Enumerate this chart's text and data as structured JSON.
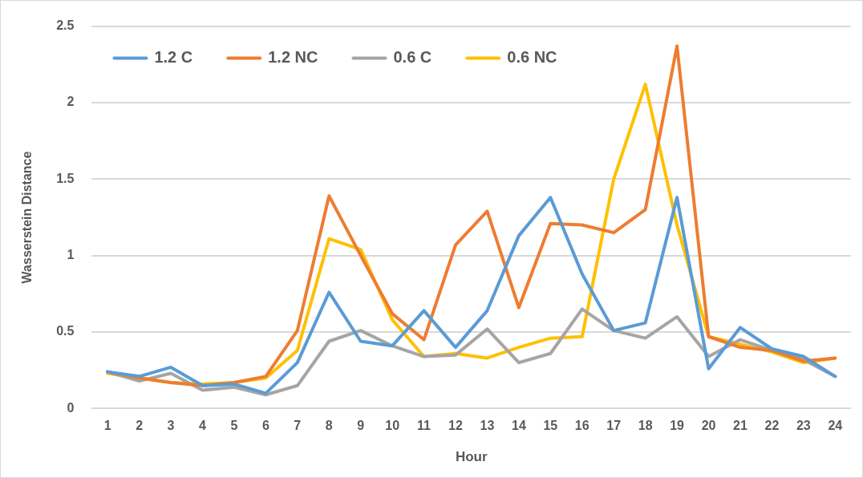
{
  "chart_data": {
    "type": "line",
    "xlabel": "Hour",
    "ylabel": "Wasserstein Distance",
    "categories": [
      "1",
      "2",
      "3",
      "4",
      "5",
      "6",
      "7",
      "8",
      "9",
      "10",
      "11",
      "12",
      "13",
      "14",
      "15",
      "16",
      "17",
      "18",
      "19",
      "20",
      "21",
      "22",
      "23",
      "24"
    ],
    "series": [
      {
        "name": "1.2 C",
        "color": "#5b9bd5",
        "values": [
          0.24,
          0.21,
          0.27,
          0.15,
          0.16,
          0.1,
          0.3,
          0.76,
          0.44,
          0.41,
          0.64,
          0.4,
          0.64,
          1.13,
          1.38,
          0.88,
          0.51,
          0.56,
          1.38,
          0.26,
          0.53,
          0.39,
          0.34,
          0.21
        ]
      },
      {
        "name": "1.2 NC",
        "color": "#ed7d31",
        "values": [
          0.24,
          0.2,
          0.17,
          0.15,
          0.17,
          0.21,
          0.51,
          1.39,
          1.0,
          0.62,
          0.45,
          1.07,
          1.29,
          0.66,
          1.21,
          1.2,
          1.15,
          1.3,
          2.37,
          0.47,
          0.4,
          0.38,
          0.31,
          0.33
        ]
      },
      {
        "name": "0.6 C",
        "color": "#a5a5a5",
        "values": [
          0.24,
          0.18,
          0.23,
          0.12,
          0.14,
          0.09,
          0.15,
          0.44,
          0.51,
          0.41,
          0.34,
          0.35,
          0.52,
          0.3,
          0.36,
          0.65,
          0.51,
          0.46,
          0.6,
          0.34,
          0.45,
          0.38,
          0.32,
          0.21
        ]
      },
      {
        "name": "0.6 NC",
        "color": "#ffc000",
        "values": [
          0.23,
          0.2,
          0.17,
          0.16,
          0.17,
          0.2,
          0.38,
          1.11,
          1.04,
          0.58,
          0.34,
          0.36,
          0.33,
          0.4,
          0.46,
          0.47,
          1.5,
          2.12,
          1.2,
          0.47,
          0.42,
          0.37,
          0.3,
          0.33
        ]
      }
    ],
    "ylim": [
      0,
      2.5
    ],
    "yticks": [
      0,
      0.5,
      1,
      1.5,
      2,
      2.5
    ],
    "grid": "y",
    "legend": "top left",
    "marker": "none",
    "line_style": "solid"
  }
}
